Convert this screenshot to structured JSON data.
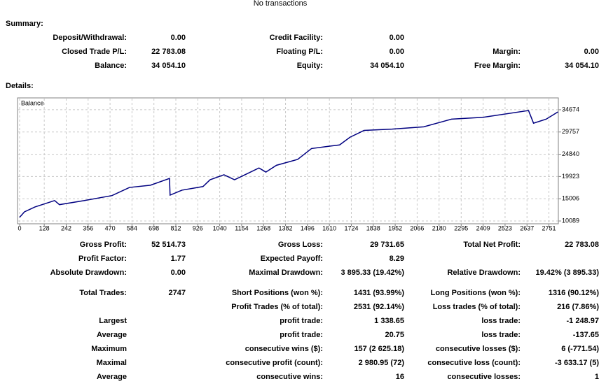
{
  "header": {
    "title": "No transactions"
  },
  "summary": {
    "title": "Summary:",
    "rows": [
      [
        {
          "label": "Deposit/Withdrawal:",
          "value": "0.00"
        },
        {
          "label": "Credit Facility:",
          "value": "0.00"
        },
        null
      ],
      [
        {
          "label": "Closed Trade P/L:",
          "value": "22 783.08"
        },
        {
          "label": "Floating P/L:",
          "value": "0.00"
        },
        {
          "label": "Margin:",
          "value": "0.00"
        }
      ],
      [
        {
          "label": "Balance:",
          "value": "34 054.10"
        },
        {
          "label": "Equity:",
          "value": "34 054.10"
        },
        {
          "label": "Free Margin:",
          "value": "34 054.10"
        }
      ]
    ]
  },
  "details": {
    "title": "Details:"
  },
  "chart_data": {
    "type": "line",
    "series": [
      {
        "name": "Balance",
        "color": "#000080",
        "values": [
          10900,
          12100,
          13200,
          14600,
          13700,
          14600,
          15700,
          17500,
          18000,
          19500,
          15800,
          16900,
          17700,
          19200,
          20300,
          19200,
          20300,
          21800,
          20900,
          22400,
          23700,
          26100,
          26600,
          26900,
          28600,
          30100,
          30400,
          30900,
          32600,
          33000,
          34500,
          31700,
          32600,
          34200
        ]
      }
    ],
    "x": [
      0,
      25,
      80,
      182,
      207,
      335,
      480,
      571,
      680,
      779,
      782,
      844,
      953,
      990,
      1062,
      1117,
      1171,
      1244,
      1280,
      1335,
      1445,
      1517,
      1608,
      1663,
      1717,
      1790,
      1936,
      2100,
      2245,
      2409,
      2645,
      2671,
      2737,
      2798
    ],
    "xlim": [
      0,
      2800
    ],
    "ylim": [
      9474,
      37290
    ],
    "xticks": [
      0,
      128,
      242,
      356,
      470,
      584,
      698,
      812,
      926,
      1040,
      1154,
      1268,
      1382,
      1496,
      1610,
      1724,
      1838,
      1952,
      2066,
      2180,
      2295,
      2409,
      2523,
      2637,
      2751
    ],
    "yticks": [
      10089,
      15006,
      19923,
      24840,
      29757,
      34674
    ],
    "grid": true
  },
  "stats": {
    "rows": [
      [
        {
          "label": "Gross Profit:",
          "value": "52 514.73"
        },
        {
          "label": "Gross Loss:",
          "value": "29 731.65"
        },
        {
          "label": "Total Net Profit:",
          "value": "22 783.08"
        }
      ],
      [
        {
          "label": "Profit Factor:",
          "value": "1.77"
        },
        {
          "label": "Expected Payoff:",
          "value": "8.29"
        },
        null
      ],
      [
        {
          "label": "Absolute Drawdown:",
          "value": "0.00"
        },
        {
          "label": "Maximal Drawdown:",
          "value": "3 895.33 (19.42%)"
        },
        {
          "label": "Relative Drawdown:",
          "value": "19.42% (3 895.33)"
        }
      ],
      [
        {
          "label": "Total Trades:",
          "value": "2747"
        },
        {
          "label": "Short Positions (won %):",
          "value": "1431 (93.99%)"
        },
        {
          "label": "Long Positions (won %):",
          "value": "1316 (90.12%)"
        }
      ],
      [
        null,
        {
          "label": "Profit Trades (% of total):",
          "value": "2531 (92.14%)"
        },
        {
          "label": "Loss trades (% of total):",
          "value": "216 (7.86%)"
        }
      ],
      [
        {
          "label": "Largest"
        },
        {
          "label": "profit trade:",
          "value": "1 338.65"
        },
        {
          "label": "loss trade:",
          "value": "-1 248.97"
        }
      ],
      [
        {
          "label": "Average"
        },
        {
          "label": "profit trade:",
          "value": "20.75"
        },
        {
          "label": "loss trade:",
          "value": "-137.65"
        }
      ],
      [
        {
          "label": "Maximum"
        },
        {
          "label": "consecutive wins ($):",
          "value": "157 (2 625.18)"
        },
        {
          "label": "consecutive losses ($):",
          "value": "6 (-771.54)"
        }
      ],
      [
        {
          "label": "Maximal"
        },
        {
          "label": "consecutive profit (count):",
          "value": "2 980.95 (72)"
        },
        {
          "label": "consecutive loss (count):",
          "value": "-3 633.17 (5)"
        }
      ],
      [
        {
          "label": "Average"
        },
        {
          "label": "consecutive wins:",
          "value": "16"
        },
        {
          "label": "consecutive losses:",
          "value": "1"
        }
      ]
    ]
  }
}
